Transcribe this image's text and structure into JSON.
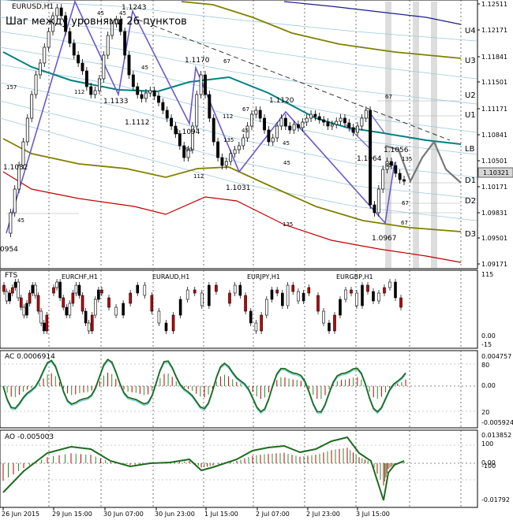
{
  "main": {
    "symbol": "EURUSD,H1",
    "caption": "Шаг между уровнями 26 пунктов",
    "current_price": "1.10321",
    "price_labels": [
      "1.12511",
      "1.12171",
      "1.11841",
      "1.11501",
      "1.11171",
      "1.10841",
      "1.10501",
      "1.10171",
      "1.09831",
      "1.09501",
      "1.09171"
    ],
    "level_labels": [
      "U4",
      "U3",
      "U2",
      "U1",
      "LB",
      "D1",
      "D2",
      "D3"
    ],
    "swing_labels": [
      "1.1243",
      "1.1170",
      "1.1133",
      "1.1112",
      "1.1094",
      "1.1120",
      "1.1031",
      "1.1032",
      "1.1064",
      "1.1056",
      "1.0967",
      "0954"
    ],
    "small_labels": [
      "45",
      "45",
      "157",
      "112",
      "45",
      "67",
      "67",
      "112",
      "45",
      "90",
      "112",
      "135",
      "45",
      "45",
      "67",
      "135",
      "67",
      "45",
      "67",
      "45",
      "135"
    ]
  },
  "sub_fts": {
    "title": "FTS",
    "markets": [
      "EURCHF,H1",
      "EURAUD,H1",
      "EURJPY,H1",
      "EURGBP,H1"
    ],
    "scale": [
      "115",
      "0.00",
      "-15"
    ]
  },
  "sub_ac": {
    "title": "AC 0.0006914",
    "scale": [
      "0.004757",
      "80",
      "0.00",
      "20",
      "-0.005924"
    ]
  },
  "sub_ao": {
    "title": "AO -0.005003",
    "scale": [
      "0.013852",
      "100",
      "0.00",
      "-100",
      "-0.01792"
    ]
  },
  "time_labels": [
    "26 Jun 2015",
    "29 Jun 15:00",
    "30 Jun 07:00",
    "30 Jun 23:00",
    "1 Jul 15:00",
    "2 Jul 07:00",
    "2 Jul 23:00",
    "3 Jul 15:00"
  ],
  "colors": {
    "up_candle": "#ffffff",
    "down_candle": "#000000",
    "zigzag": "#6a5acd",
    "teal_band": "#008080",
    "olive_band": "#808000",
    "red_band": "#c00000",
    "navy_band": "#1c1c8c",
    "histogram_up": "#2e8b2e",
    "histogram_down": "#c00000"
  }
}
